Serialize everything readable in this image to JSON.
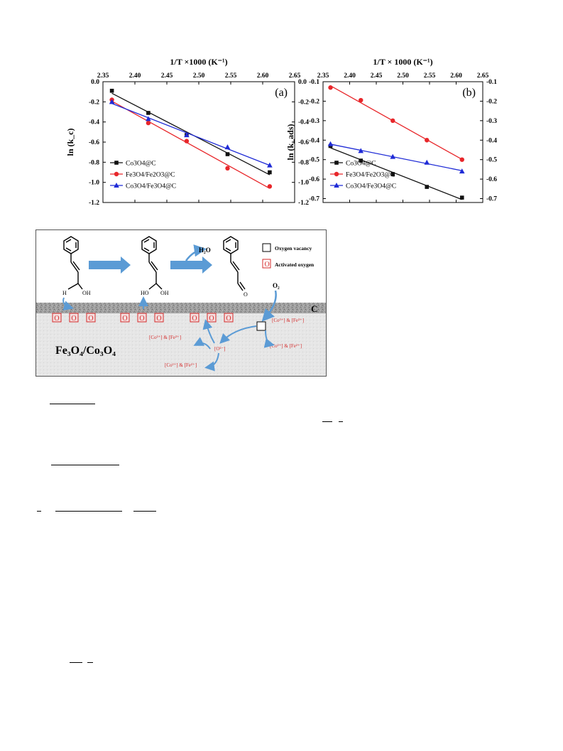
{
  "chart_data": [
    {
      "type": "scatter",
      "panel_label": "(a)",
      "xlabel_top": "1/T ×1000 (K⁻¹)",
      "ylabel": "ln (k_c)",
      "xlim": [
        2.35,
        2.65
      ],
      "ylim": [
        -1.2,
        0.0
      ],
      "xticks": [
        "2.35",
        "2.40",
        "2.45",
        "2.50",
        "2.55",
        "2.60",
        "2.65"
      ],
      "yticks": [
        "0.0",
        "-0.2",
        "-0.4",
        "-0.6",
        "-0.8",
        "-1.0",
        "-1.2"
      ],
      "legend_position": "lower-left",
      "series": [
        {
          "name": "Co3O4@C",
          "color": "#111111",
          "marker": "square",
          "x": [
            2.364,
            2.421,
            2.481,
            2.545,
            2.611
          ],
          "y": [
            -0.09,
            -0.31,
            -0.53,
            -0.72,
            -0.9
          ]
        },
        {
          "name": "Fe3O4/Fe2O3@C",
          "color": "#e8262a",
          "marker": "circle",
          "x": [
            2.364,
            2.421,
            2.481,
            2.545,
            2.611
          ],
          "y": [
            -0.18,
            -0.41,
            -0.59,
            -0.86,
            -1.04
          ]
        },
        {
          "name": "Co3O4/Fe3O4@C",
          "color": "#1f2bd6",
          "marker": "triangle",
          "x": [
            2.364,
            2.421,
            2.481,
            2.545,
            2.611
          ],
          "y": [
            -0.2,
            -0.37,
            -0.53,
            -0.65,
            -0.83
          ]
        }
      ]
    },
    {
      "type": "scatter",
      "panel_label": "(b)",
      "xlabel_top": "1/T × 1000 (K⁻¹)",
      "ylabel": "ln (k_ads)",
      "xlim": [
        2.35,
        2.65
      ],
      "ylim": [
        -0.72,
        -0.1
      ],
      "xticks": [
        "2.35",
        "2.40",
        "2.45",
        "2.50",
        "2.55",
        "2.60",
        "2.65"
      ],
      "yticks": [
        "-0.1",
        "-0.2",
        "-0.3",
        "-0.4",
        "-0.5",
        "-0.6",
        "-0.7"
      ],
      "legend_position": "lower-left",
      "series": [
        {
          "name": "Co3O4@C",
          "color": "#111111",
          "marker": "square",
          "x": [
            2.364,
            2.421,
            2.481,
            2.545,
            2.611
          ],
          "y": [
            -0.43,
            -0.505,
            -0.575,
            -0.64,
            -0.695
          ]
        },
        {
          "name": "Fe3O4/Fe2O3@C",
          "color": "#e8262a",
          "marker": "circle",
          "x": [
            2.364,
            2.421,
            2.481,
            2.545,
            2.611
          ],
          "y": [
            -0.13,
            -0.195,
            -0.3,
            -0.4,
            -0.5
          ]
        },
        {
          "name": "Co3O4/Fe3O4@C",
          "color": "#1f2bd6",
          "marker": "triangle",
          "x": [
            2.364,
            2.421,
            2.481,
            2.545,
            2.611
          ],
          "y": [
            -0.42,
            -0.455,
            -0.485,
            -0.515,
            -0.56
          ]
        }
      ]
    }
  ],
  "scheme": {
    "legend_vacancy": "Oxygen vacancy",
    "legend_activated": "Activated oxygen",
    "o_letter": "O",
    "c_label": "C",
    "h2o": "H₂O",
    "o2": "O₂",
    "substrate_label": "Fe₃O₄/Co₃O₄",
    "h_label": "H",
    "oh_label": "OH",
    "ho_label": "HO",
    "o_ald": "O",
    "redox_1": "[Co³⁺] & [Fe³⁺]",
    "redox_2": "[Co²⁺] & [Fe²⁺]",
    "redox_3": "[Co³⁺] & [Fe³⁺]",
    "redox_4": "[O²⁻]",
    "redox_5": "[Co²⁺] & [Fe²⁺]",
    "colors": {
      "arrow": "#5b9bd5",
      "red": "#d42b2b",
      "ground": "#e4e4e4",
      "carbon": "#a9a9a9"
    }
  }
}
